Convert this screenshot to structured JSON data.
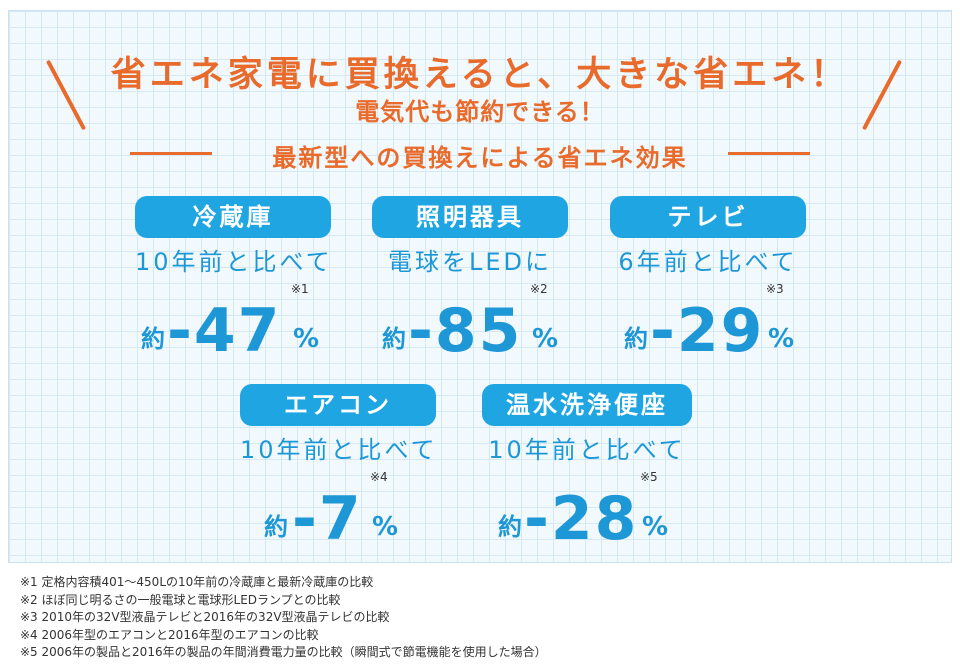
{
  "colors": {
    "orange": "#e96b2c",
    "blue": "#1e97d6",
    "pill": "#1fa6e2",
    "grid": "#d5e9f5"
  },
  "header": {
    "title": "省エネ家電に買換えると、大きな省エネ！",
    "subtitle": "電気代も節約できる！",
    "section": "最新型への買換えによる省エネ効果"
  },
  "cards": [
    {
      "name": "冷蔵庫",
      "sub": "10年前と比べて",
      "prefix": "約",
      "value": "-47",
      "unit": "%",
      "note": "※1"
    },
    {
      "name": "照明器具",
      "sub": "電球をLEDに",
      "prefix": "約",
      "value": "-85",
      "unit": "%",
      "note": "※2"
    },
    {
      "name": "テレビ",
      "sub": "6年前と比べて",
      "prefix": "約",
      "value": "-29",
      "unit": "%",
      "note": "※3"
    },
    {
      "name": "エアコン",
      "sub": "10年前と比べて",
      "prefix": "約",
      "value": "-7",
      "unit": "%",
      "note": "※4"
    },
    {
      "name": "温水洗浄便座",
      "sub": "10年前と比べて",
      "prefix": "約",
      "value": "-28",
      "unit": "%",
      "note": "※5"
    }
  ],
  "footnotes": [
    "※1 定格内容積401～450Lの10年前の冷蔵庫と最新冷蔵庫の比較",
    "※2 ほぼ同じ明るさの一般電球と電球形LEDランプとの比較",
    "※3 2010年の32V型液晶テレビと2016年の32V型液晶テレビの比較",
    "※4 2006年型のエアコンと2016年型のエアコンの比較",
    "※5 2006年の製品と2016年の製品の年間消費電力量の比較（瞬間式で節電機能を使用した場合）"
  ]
}
